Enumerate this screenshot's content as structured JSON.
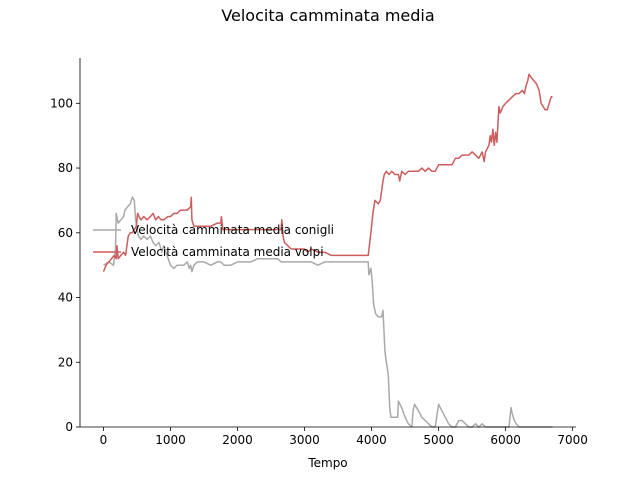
{
  "chart_data": {
    "type": "line",
    "title": "Velocita camminata media",
    "xlabel": "Tempo",
    "ylabel": "",
    "xlim": [
      -350,
      7050
    ],
    "ylim": [
      0,
      114
    ],
    "xticks": [
      0,
      1000,
      2000,
      3000,
      4000,
      5000,
      6000,
      7000
    ],
    "yticks": [
      0,
      20,
      40,
      60,
      80,
      100
    ],
    "grid": false,
    "legend_position": "center-left",
    "series": [
      {
        "name": "Velocità camminata media conigli",
        "color": "#a9a9a9",
        "points": [
          [
            0,
            50
          ],
          [
            80,
            51
          ],
          [
            150,
            50
          ],
          [
            180,
            55
          ],
          [
            190,
            66
          ],
          [
            220,
            63
          ],
          [
            260,
            64
          ],
          [
            300,
            65
          ],
          [
            320,
            67
          ],
          [
            360,
            68
          ],
          [
            400,
            69
          ],
          [
            430,
            71
          ],
          [
            460,
            70
          ],
          [
            480,
            64
          ],
          [
            520,
            59
          ],
          [
            560,
            58
          ],
          [
            600,
            59
          ],
          [
            650,
            58
          ],
          [
            700,
            59
          ],
          [
            740,
            57
          ],
          [
            780,
            56
          ],
          [
            830,
            57
          ],
          [
            870,
            54
          ],
          [
            900,
            56
          ],
          [
            950,
            53
          ],
          [
            1000,
            50
          ],
          [
            1050,
            49
          ],
          [
            1100,
            50
          ],
          [
            1150,
            50
          ],
          [
            1200,
            50
          ],
          [
            1250,
            51
          ],
          [
            1280,
            49
          ],
          [
            1300,
            50
          ],
          [
            1320,
            48
          ],
          [
            1350,
            50
          ],
          [
            1400,
            51
          ],
          [
            1500,
            51
          ],
          [
            1600,
            50
          ],
          [
            1700,
            51
          ],
          [
            1750,
            51
          ],
          [
            1800,
            50
          ],
          [
            1900,
            50
          ],
          [
            2000,
            51
          ],
          [
            2100,
            51
          ],
          [
            2200,
            51
          ],
          [
            2300,
            52
          ],
          [
            2400,
            52
          ],
          [
            2500,
            52
          ],
          [
            2600,
            52
          ],
          [
            2650,
            51
          ],
          [
            2700,
            51
          ],
          [
            2800,
            51
          ],
          [
            2900,
            51
          ],
          [
            3000,
            51
          ],
          [
            3100,
            51
          ],
          [
            3200,
            50
          ],
          [
            3300,
            51
          ],
          [
            3400,
            51
          ],
          [
            3500,
            51
          ],
          [
            3600,
            51
          ],
          [
            3700,
            51
          ],
          [
            3800,
            51
          ],
          [
            3900,
            51
          ],
          [
            3950,
            51
          ],
          [
            3960,
            47
          ],
          [
            3990,
            49
          ],
          [
            4010,
            45
          ],
          [
            4030,
            38
          ],
          [
            4060,
            35
          ],
          [
            4100,
            34
          ],
          [
            4150,
            34
          ],
          [
            4170,
            36
          ],
          [
            4200,
            23
          ],
          [
            4250,
            16
          ],
          [
            4270,
            6
          ],
          [
            4290,
            3
          ],
          [
            4350,
            3
          ],
          [
            4390,
            3
          ],
          [
            4400,
            8
          ],
          [
            4450,
            6
          ],
          [
            4500,
            3
          ],
          [
            4550,
            1
          ],
          [
            4600,
            0
          ],
          [
            4620,
            5
          ],
          [
            4640,
            7
          ],
          [
            4700,
            5
          ],
          [
            4750,
            3
          ],
          [
            4800,
            2
          ],
          [
            4850,
            1
          ],
          [
            4900,
            0
          ],
          [
            4950,
            0
          ],
          [
            5000,
            7
          ],
          [
            5050,
            5
          ],
          [
            5100,
            3
          ],
          [
            5150,
            1
          ],
          [
            5200,
            0
          ],
          [
            5250,
            0
          ],
          [
            5300,
            2
          ],
          [
            5350,
            2
          ],
          [
            5400,
            1
          ],
          [
            5450,
            0
          ],
          [
            5500,
            0
          ],
          [
            5550,
            1
          ],
          [
            5600,
            0
          ],
          [
            5650,
            1
          ],
          [
            5700,
            0
          ],
          [
            5800,
            0
          ],
          [
            5900,
            0
          ],
          [
            6000,
            0
          ],
          [
            6050,
            0
          ],
          [
            6080,
            6
          ],
          [
            6100,
            4
          ],
          [
            6130,
            2
          ],
          [
            6160,
            1
          ],
          [
            6200,
            0
          ],
          [
            6300,
            0
          ],
          [
            6400,
            0
          ],
          [
            6500,
            0
          ],
          [
            6600,
            0
          ],
          [
            6700,
            0
          ]
        ]
      },
      {
        "name": "Velocità camminata media volpi",
        "color": "#cd5c5c",
        "points": [
          [
            0,
            48
          ],
          [
            40,
            50
          ],
          [
            80,
            51
          ],
          [
            120,
            52
          ],
          [
            160,
            53
          ],
          [
            190,
            52
          ],
          [
            200,
            56
          ],
          [
            220,
            52
          ],
          [
            260,
            53
          ],
          [
            300,
            54
          ],
          [
            330,
            53
          ],
          [
            350,
            56
          ],
          [
            370,
            59
          ],
          [
            400,
            60
          ],
          [
            430,
            60
          ],
          [
            460,
            61
          ],
          [
            490,
            62
          ],
          [
            510,
            66
          ],
          [
            530,
            65
          ],
          [
            560,
            64
          ],
          [
            600,
            65
          ],
          [
            650,
            64
          ],
          [
            700,
            65
          ],
          [
            740,
            66
          ],
          [
            780,
            64
          ],
          [
            820,
            65
          ],
          [
            860,
            64
          ],
          [
            900,
            64
          ],
          [
            960,
            65
          ],
          [
            1000,
            65
          ],
          [
            1050,
            66
          ],
          [
            1100,
            66
          ],
          [
            1150,
            67
          ],
          [
            1200,
            67
          ],
          [
            1250,
            67
          ],
          [
            1300,
            68
          ],
          [
            1310,
            71
          ],
          [
            1320,
            64
          ],
          [
            1350,
            62
          ],
          [
            1400,
            62
          ],
          [
            1500,
            62
          ],
          [
            1600,
            62
          ],
          [
            1700,
            63
          ],
          [
            1750,
            63
          ],
          [
            1760,
            65
          ],
          [
            1780,
            61
          ],
          [
            1800,
            61
          ],
          [
            1900,
            61
          ],
          [
            2000,
            61
          ],
          [
            2100,
            61
          ],
          [
            2200,
            61
          ],
          [
            2300,
            61
          ],
          [
            2400,
            61
          ],
          [
            2500,
            61
          ],
          [
            2600,
            61
          ],
          [
            2650,
            61
          ],
          [
            2660,
            64
          ],
          [
            2680,
            59
          ],
          [
            2700,
            57
          ],
          [
            2750,
            56
          ],
          [
            2800,
            55
          ],
          [
            2850,
            55
          ],
          [
            2900,
            55
          ],
          [
            3000,
            55
          ],
          [
            3050,
            54
          ],
          [
            3100,
            55
          ],
          [
            3200,
            54
          ],
          [
            3300,
            54
          ],
          [
            3400,
            53
          ],
          [
            3500,
            53
          ],
          [
            3600,
            53
          ],
          [
            3700,
            53
          ],
          [
            3800,
            53
          ],
          [
            3900,
            53
          ],
          [
            3950,
            53
          ],
          [
            3990,
            60
          ],
          [
            4020,
            66
          ],
          [
            4050,
            70
          ],
          [
            4100,
            69
          ],
          [
            4130,
            70
          ],
          [
            4170,
            76
          ],
          [
            4190,
            78
          ],
          [
            4220,
            79
          ],
          [
            4260,
            78
          ],
          [
            4300,
            79
          ],
          [
            4350,
            78
          ],
          [
            4400,
            78
          ],
          [
            4420,
            76
          ],
          [
            4450,
            79
          ],
          [
            4500,
            78
          ],
          [
            4550,
            79
          ],
          [
            4600,
            79
          ],
          [
            4650,
            79
          ],
          [
            4700,
            79
          ],
          [
            4750,
            80
          ],
          [
            4800,
            79
          ],
          [
            4850,
            80
          ],
          [
            4900,
            79
          ],
          [
            4950,
            79
          ],
          [
            5000,
            81
          ],
          [
            5050,
            81
          ],
          [
            5100,
            81
          ],
          [
            5200,
            81
          ],
          [
            5250,
            83
          ],
          [
            5300,
            83
          ],
          [
            5350,
            84
          ],
          [
            5400,
            84
          ],
          [
            5450,
            84
          ],
          [
            5500,
            85
          ],
          [
            5550,
            84
          ],
          [
            5600,
            83
          ],
          [
            5650,
            85
          ],
          [
            5680,
            82
          ],
          [
            5700,
            85
          ],
          [
            5750,
            87
          ],
          [
            5770,
            90
          ],
          [
            5790,
            88
          ],
          [
            5810,
            92
          ],
          [
            5830,
            87
          ],
          [
            5850,
            91
          ],
          [
            5870,
            88
          ],
          [
            5900,
            99
          ],
          [
            5920,
            97
          ],
          [
            5960,
            99
          ],
          [
            6000,
            100
          ],
          [
            6050,
            101
          ],
          [
            6100,
            102
          ],
          [
            6150,
            103
          ],
          [
            6200,
            103
          ],
          [
            6250,
            104
          ],
          [
            6280,
            103
          ],
          [
            6300,
            105
          ],
          [
            6330,
            107
          ],
          [
            6350,
            109
          ],
          [
            6380,
            108
          ],
          [
            6420,
            107
          ],
          [
            6460,
            106
          ],
          [
            6500,
            104
          ],
          [
            6530,
            100
          ],
          [
            6560,
            99
          ],
          [
            6590,
            98
          ],
          [
            6620,
            98
          ],
          [
            6650,
            100
          ],
          [
            6680,
            102
          ],
          [
            6700,
            102
          ]
        ]
      }
    ]
  }
}
